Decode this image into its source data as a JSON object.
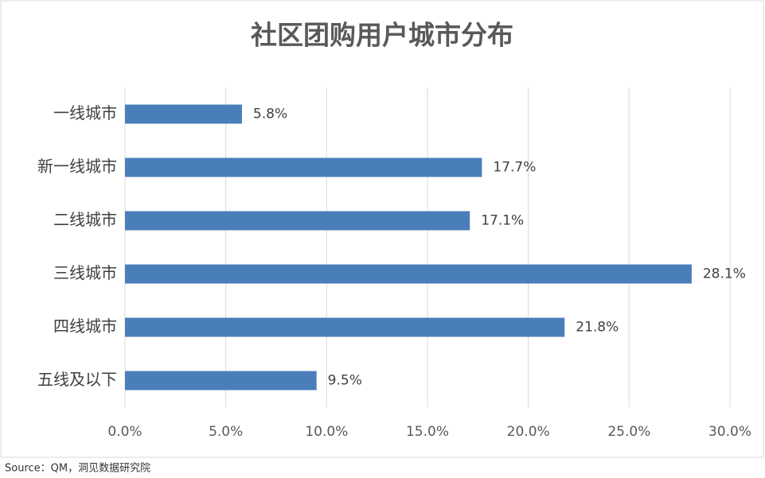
{
  "chart_data": {
    "type": "barh",
    "title": "社区团购用户城市分布",
    "categories": [
      "一线城市",
      "新一线城市",
      "二线城市",
      "三线城市",
      "四线城市",
      "五线及以下"
    ],
    "values": [
      5.8,
      17.7,
      17.1,
      28.1,
      21.8,
      9.5
    ],
    "value_labels": [
      "5.8%",
      "17.7%",
      "17.1%",
      "28.1%",
      "21.8%",
      "9.5%"
    ],
    "color": "#4a7ebb",
    "xlim": [
      0,
      30
    ],
    "xticks": [
      {
        "value": 0,
        "label": "0.0%"
      },
      {
        "value": 5,
        "label": "5.0%"
      },
      {
        "value": 10,
        "label": "10.0%"
      },
      {
        "value": 15,
        "label": "15.0%"
      },
      {
        "value": 20,
        "label": "20.0%"
      },
      {
        "value": 25,
        "label": "25.0%"
      },
      {
        "value": 30,
        "label": "30.0%"
      }
    ],
    "grid": true,
    "source": "Source：QM，洞见数据研究院"
  }
}
